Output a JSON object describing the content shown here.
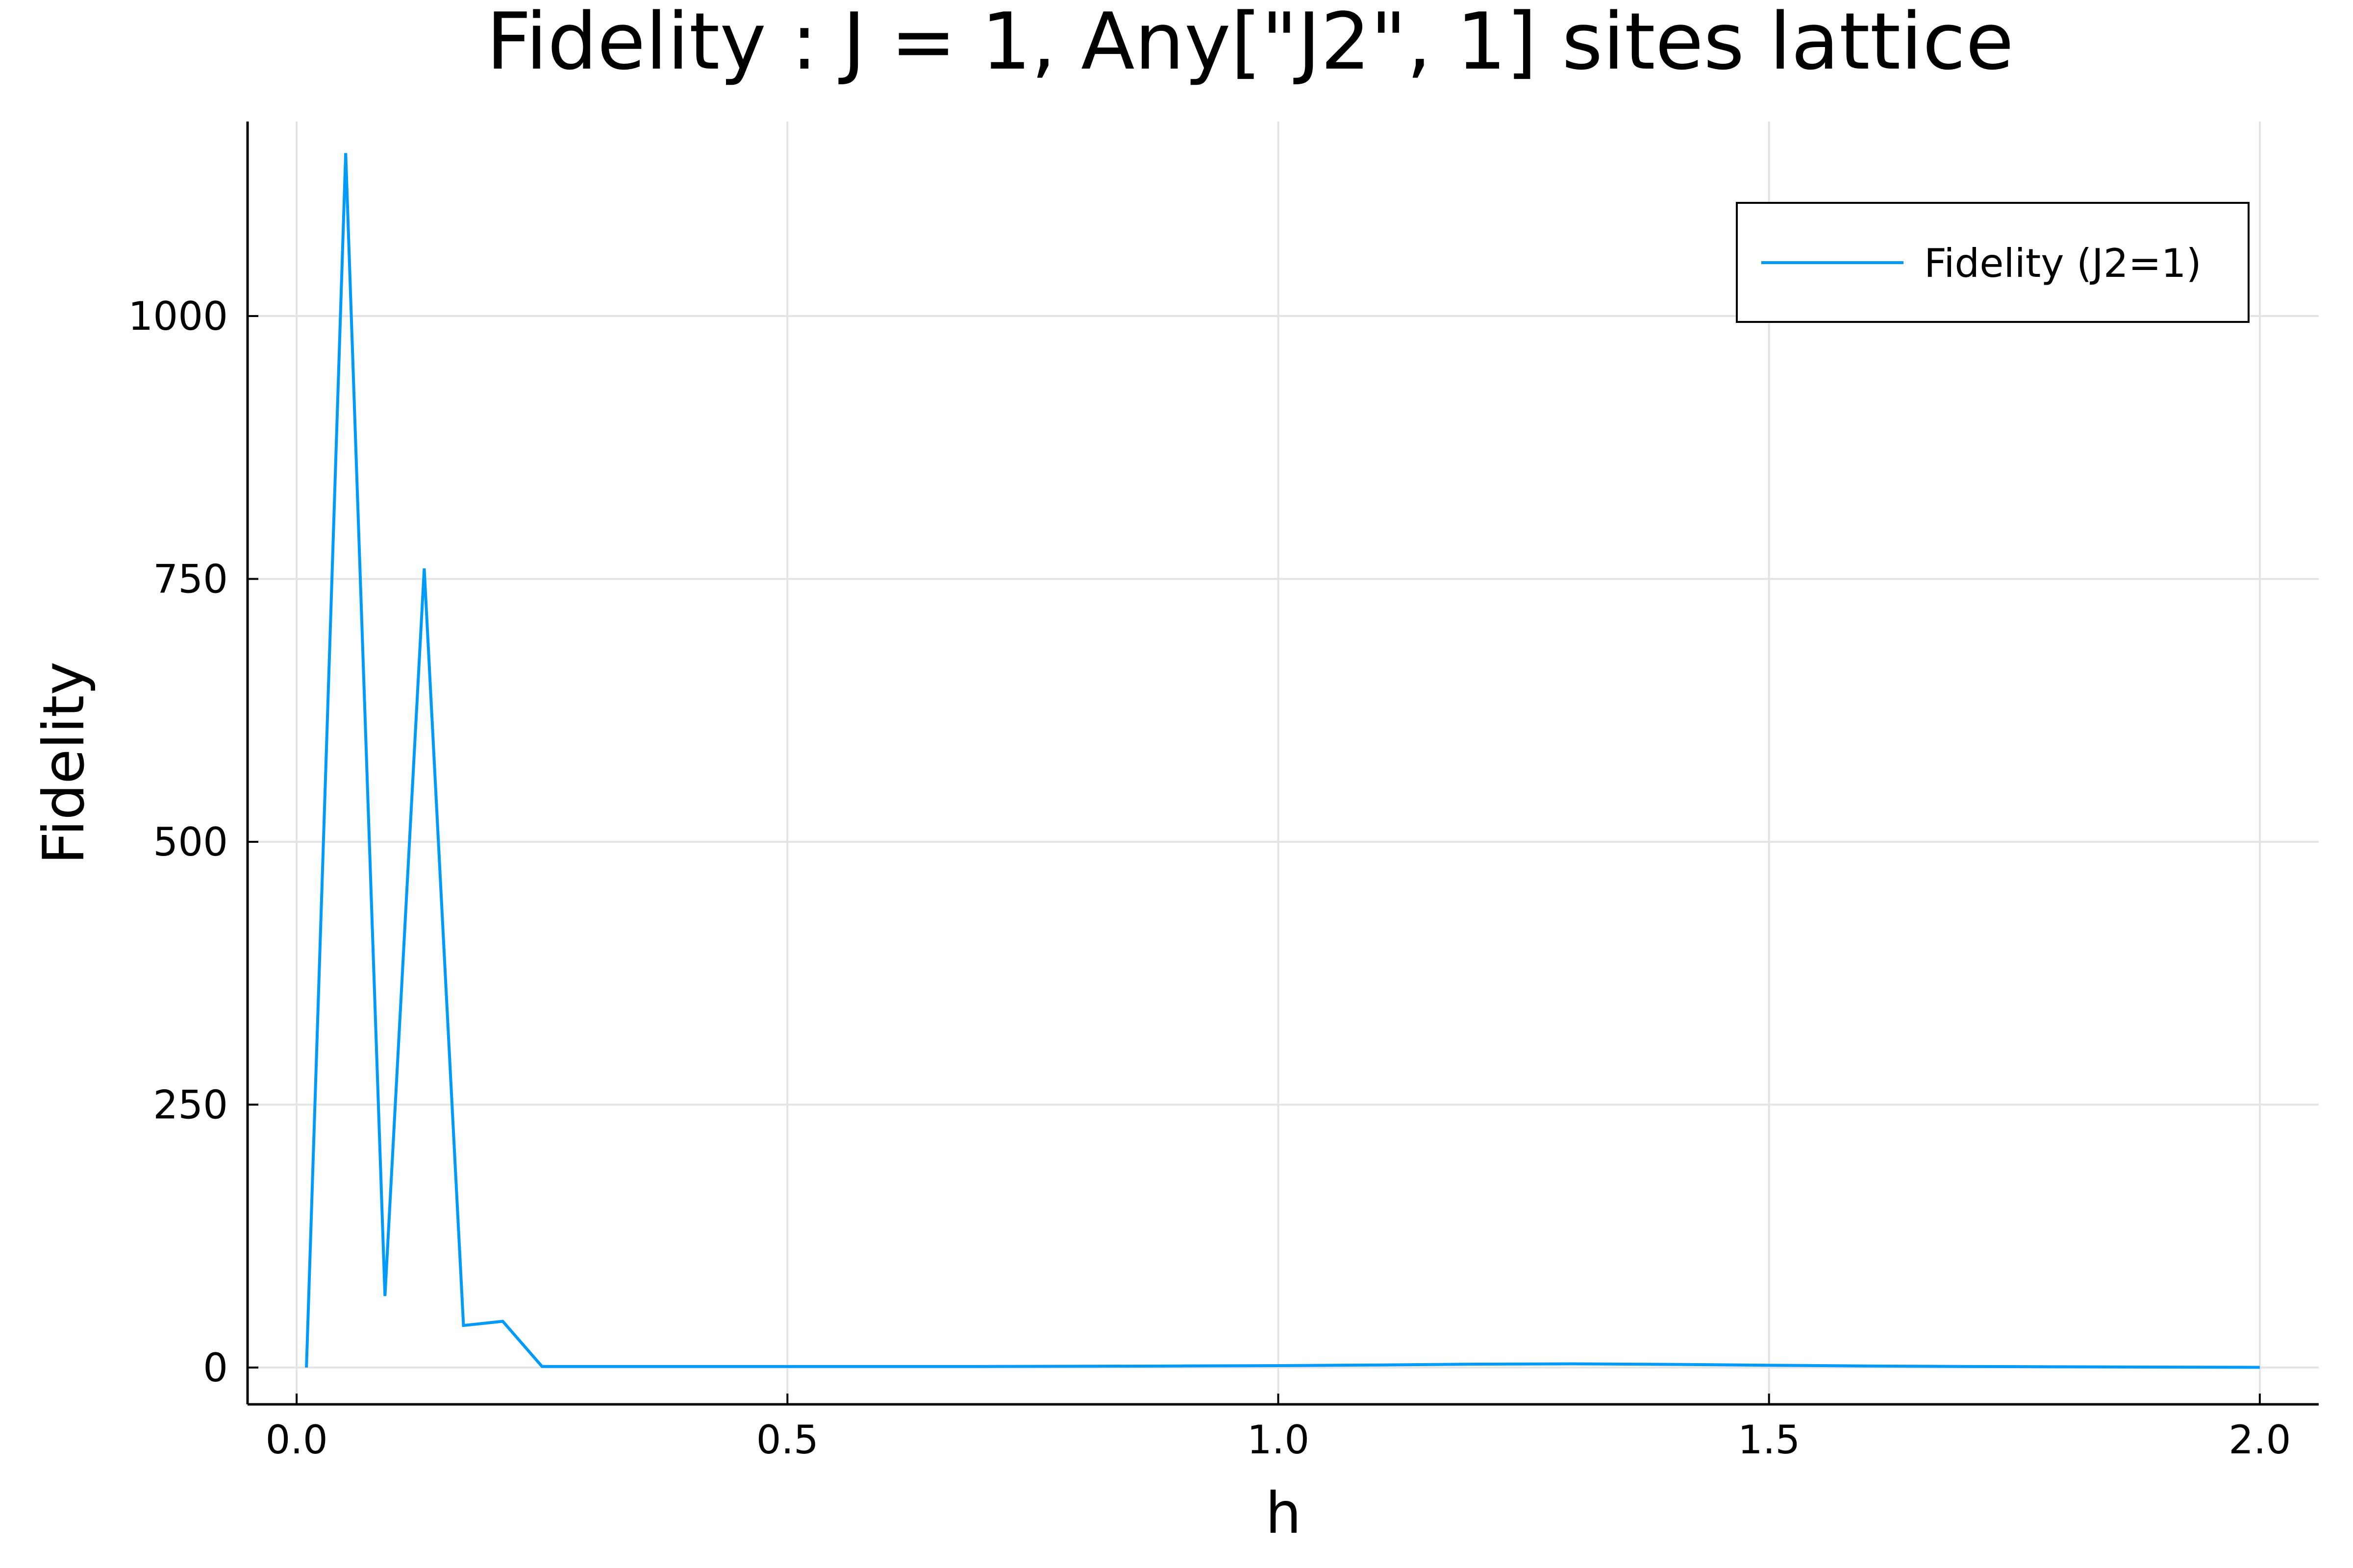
{
  "chart_data": {
    "type": "line",
    "title": "Fidelity : J = 1, Any[\"J2\", 1] sites lattice",
    "xlabel": "h",
    "ylabel": "Fidelity",
    "xlim": [
      -0.05,
      2.06
    ],
    "ylim": [
      -35,
      1185
    ],
    "xticks": [
      0.0,
      0.5,
      1.0,
      1.5,
      2.0
    ],
    "xtick_labels": [
      "0.0",
      "0.5",
      "1.0",
      "1.5",
      "2.0"
    ],
    "yticks": [
      0,
      250,
      500,
      750,
      1000
    ],
    "ytick_labels": [
      "0",
      "250",
      "500",
      "750",
      "1000"
    ],
    "grid": true,
    "legend_position": "top-right",
    "series": [
      {
        "name": "Fidelity (J2=1)",
        "color": "#009AFA",
        "x": [
          0.01,
          0.05,
          0.09,
          0.13,
          0.17,
          0.21,
          0.25,
          0.3,
          0.4,
          0.5,
          0.6,
          0.7,
          0.8,
          0.9,
          1.0,
          1.1,
          1.2,
          1.3,
          1.4,
          1.5,
          1.6,
          1.7,
          1.8,
          1.9,
          2.0
        ],
        "y": [
          0,
          1155,
          68,
          760,
          40,
          44,
          1,
          1,
          1,
          1,
          1,
          1,
          1.2,
          1.5,
          1.8,
          2.4,
          3.2,
          3.5,
          3.0,
          2.2,
          1.5,
          1.0,
          0.7,
          0.4,
          0.2
        ]
      }
    ]
  }
}
